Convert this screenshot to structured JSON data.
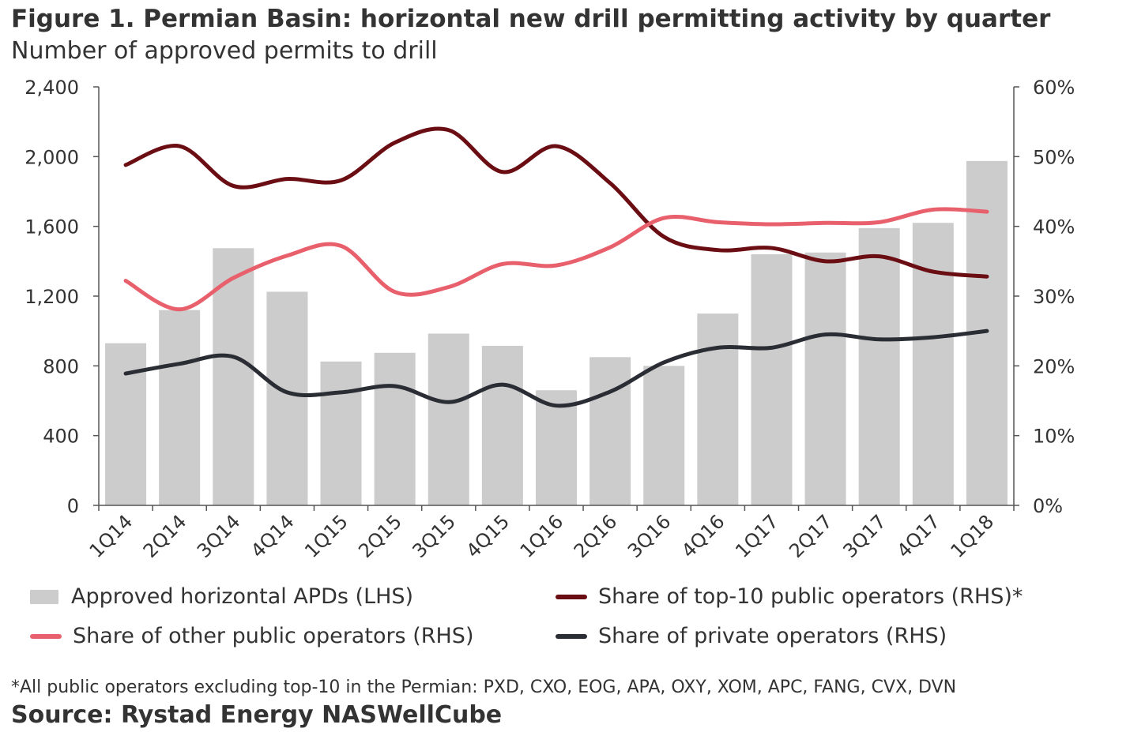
{
  "chart_data": {
    "type": "bar",
    "title": "Figure 1. Permian Basin: horizontal new drill permitting activity by quarter",
    "subtitle": "Number of approved permits to drill",
    "categories": [
      "1Q14",
      "2Q14",
      "3Q14",
      "4Q14",
      "1Q15",
      "2Q15",
      "3Q15",
      "4Q15",
      "1Q16",
      "2Q16",
      "3Q16",
      "4Q16",
      "1Q17",
      "2Q17",
      "3Q17",
      "4Q17",
      "1Q18"
    ],
    "y_left": {
      "ticks": [
        "0",
        "400",
        "800",
        "1,200",
        "1,600",
        "2,000",
        "2,400"
      ],
      "ylim": [
        0,
        2400
      ]
    },
    "y_right": {
      "ticks": [
        "0%",
        "10%",
        "20%",
        "30%",
        "40%",
        "50%",
        "60%"
      ],
      "ylim": [
        0,
        60
      ]
    },
    "bars": {
      "name": "Approved horizontal APDs (LHS)",
      "color": "#cccccc",
      "values": [
        930,
        1120,
        1475,
        1225,
        825,
        875,
        985,
        915,
        660,
        850,
        800,
        1100,
        1440,
        1450,
        1590,
        1620,
        1975
      ]
    },
    "series": [
      {
        "name": "Share of top-10 public operators (RHS)*",
        "axis": "right",
        "color": "#6b0e14",
        "values": [
          48.8,
          51.5,
          45.8,
          46.8,
          46.6,
          52.0,
          53.8,
          47.8,
          51.5,
          46.2,
          38.5,
          36.6,
          36.9,
          35.0,
          35.7,
          33.5,
          32.8
        ]
      },
      {
        "name": "Share of other public operators (RHS)",
        "axis": "right",
        "color": "#e8606c",
        "values": [
          32.2,
          28.1,
          32.6,
          35.8,
          37.2,
          30.6,
          31.3,
          34.6,
          34.4,
          37.0,
          41.2,
          40.6,
          40.3,
          40.5,
          40.6,
          42.4,
          42.1
        ]
      },
      {
        "name": "Share of private operators (RHS)",
        "axis": "right",
        "color": "#2b2d35",
        "values": [
          18.9,
          20.3,
          21.3,
          16.2,
          16.2,
          17.1,
          14.8,
          17.3,
          14.3,
          16.3,
          20.5,
          22.6,
          22.6,
          24.5,
          23.8,
          24.1,
          25.0
        ]
      }
    ],
    "grid": false,
    "legend_position": "bottom"
  },
  "legend": {
    "bars": "Approved horizontal APDs (LHS)",
    "top10": "Share of top-10 public operators (RHS)*",
    "other": "Share of other public operators (RHS)",
    "private": "Share of private operators (RHS)"
  },
  "footnote": "*All public operators excluding top-10 in the Permian: PXD, CXO, EOG, APA, OXY, XOM, APC, FANG, CVX, DVN",
  "source": "Source: Rystad Energy NASWellCube"
}
